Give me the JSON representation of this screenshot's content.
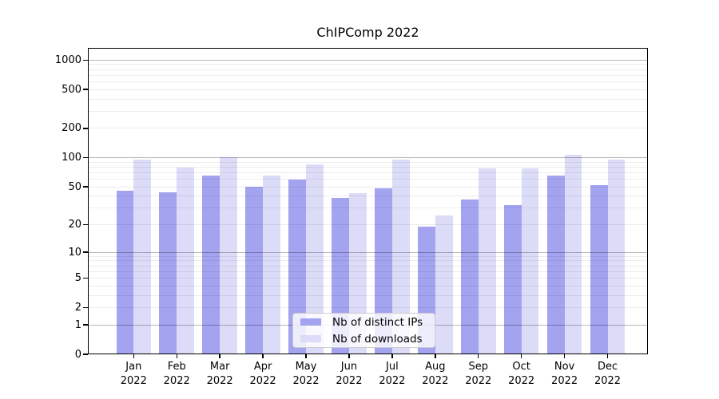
{
  "title": "ChIPComp 2022",
  "colors": {
    "distinct_ips_bar": "#a3a3ef",
    "downloads_bar": "#dcdcf8",
    "grid_major": "#b5b5b5",
    "grid_minor": "#ececf1",
    "axis": "#000000",
    "legend_border": "#cccccc",
    "text": "#000000"
  },
  "y_axis": {
    "tick_labels": [
      "1000",
      "500",
      "200",
      "100",
      "50",
      "20",
      "10",
      "5",
      "2",
      "1",
      "0"
    ],
    "tick_values": [
      1000,
      500,
      200,
      100,
      50,
      20,
      10,
      5,
      2,
      1,
      0
    ]
  },
  "chart_data": {
    "type": "bar",
    "title": "ChIPComp 2022",
    "categories": [
      "Jan 2022",
      "Feb 2022",
      "Mar 2022",
      "Apr 2022",
      "May 2022",
      "Jun 2022",
      "Jul 2022",
      "Aug 2022",
      "Sep 2022",
      "Oct 2022",
      "Nov 2022",
      "Dec 2022"
    ],
    "series": [
      {
        "name": "Nb of distinct IPs",
        "values": [
          46,
          44,
          66,
          50,
          60,
          38,
          48,
          19,
          37,
          32,
          65,
          52
        ]
      },
      {
        "name": "Nb of downloads",
        "values": [
          96,
          79,
          102,
          66,
          86,
          43,
          96,
          25,
          77,
          78,
          108,
          95
        ]
      }
    ],
    "xlabel": "",
    "ylabel": "",
    "yscale": "log1p",
    "ylim": [
      0,
      1330
    ],
    "y_ticks": [
      0,
      1,
      2,
      5,
      10,
      20,
      50,
      100,
      200,
      500,
      1000
    ],
    "grid": "horizontal",
    "legend_position": "lower center"
  }
}
